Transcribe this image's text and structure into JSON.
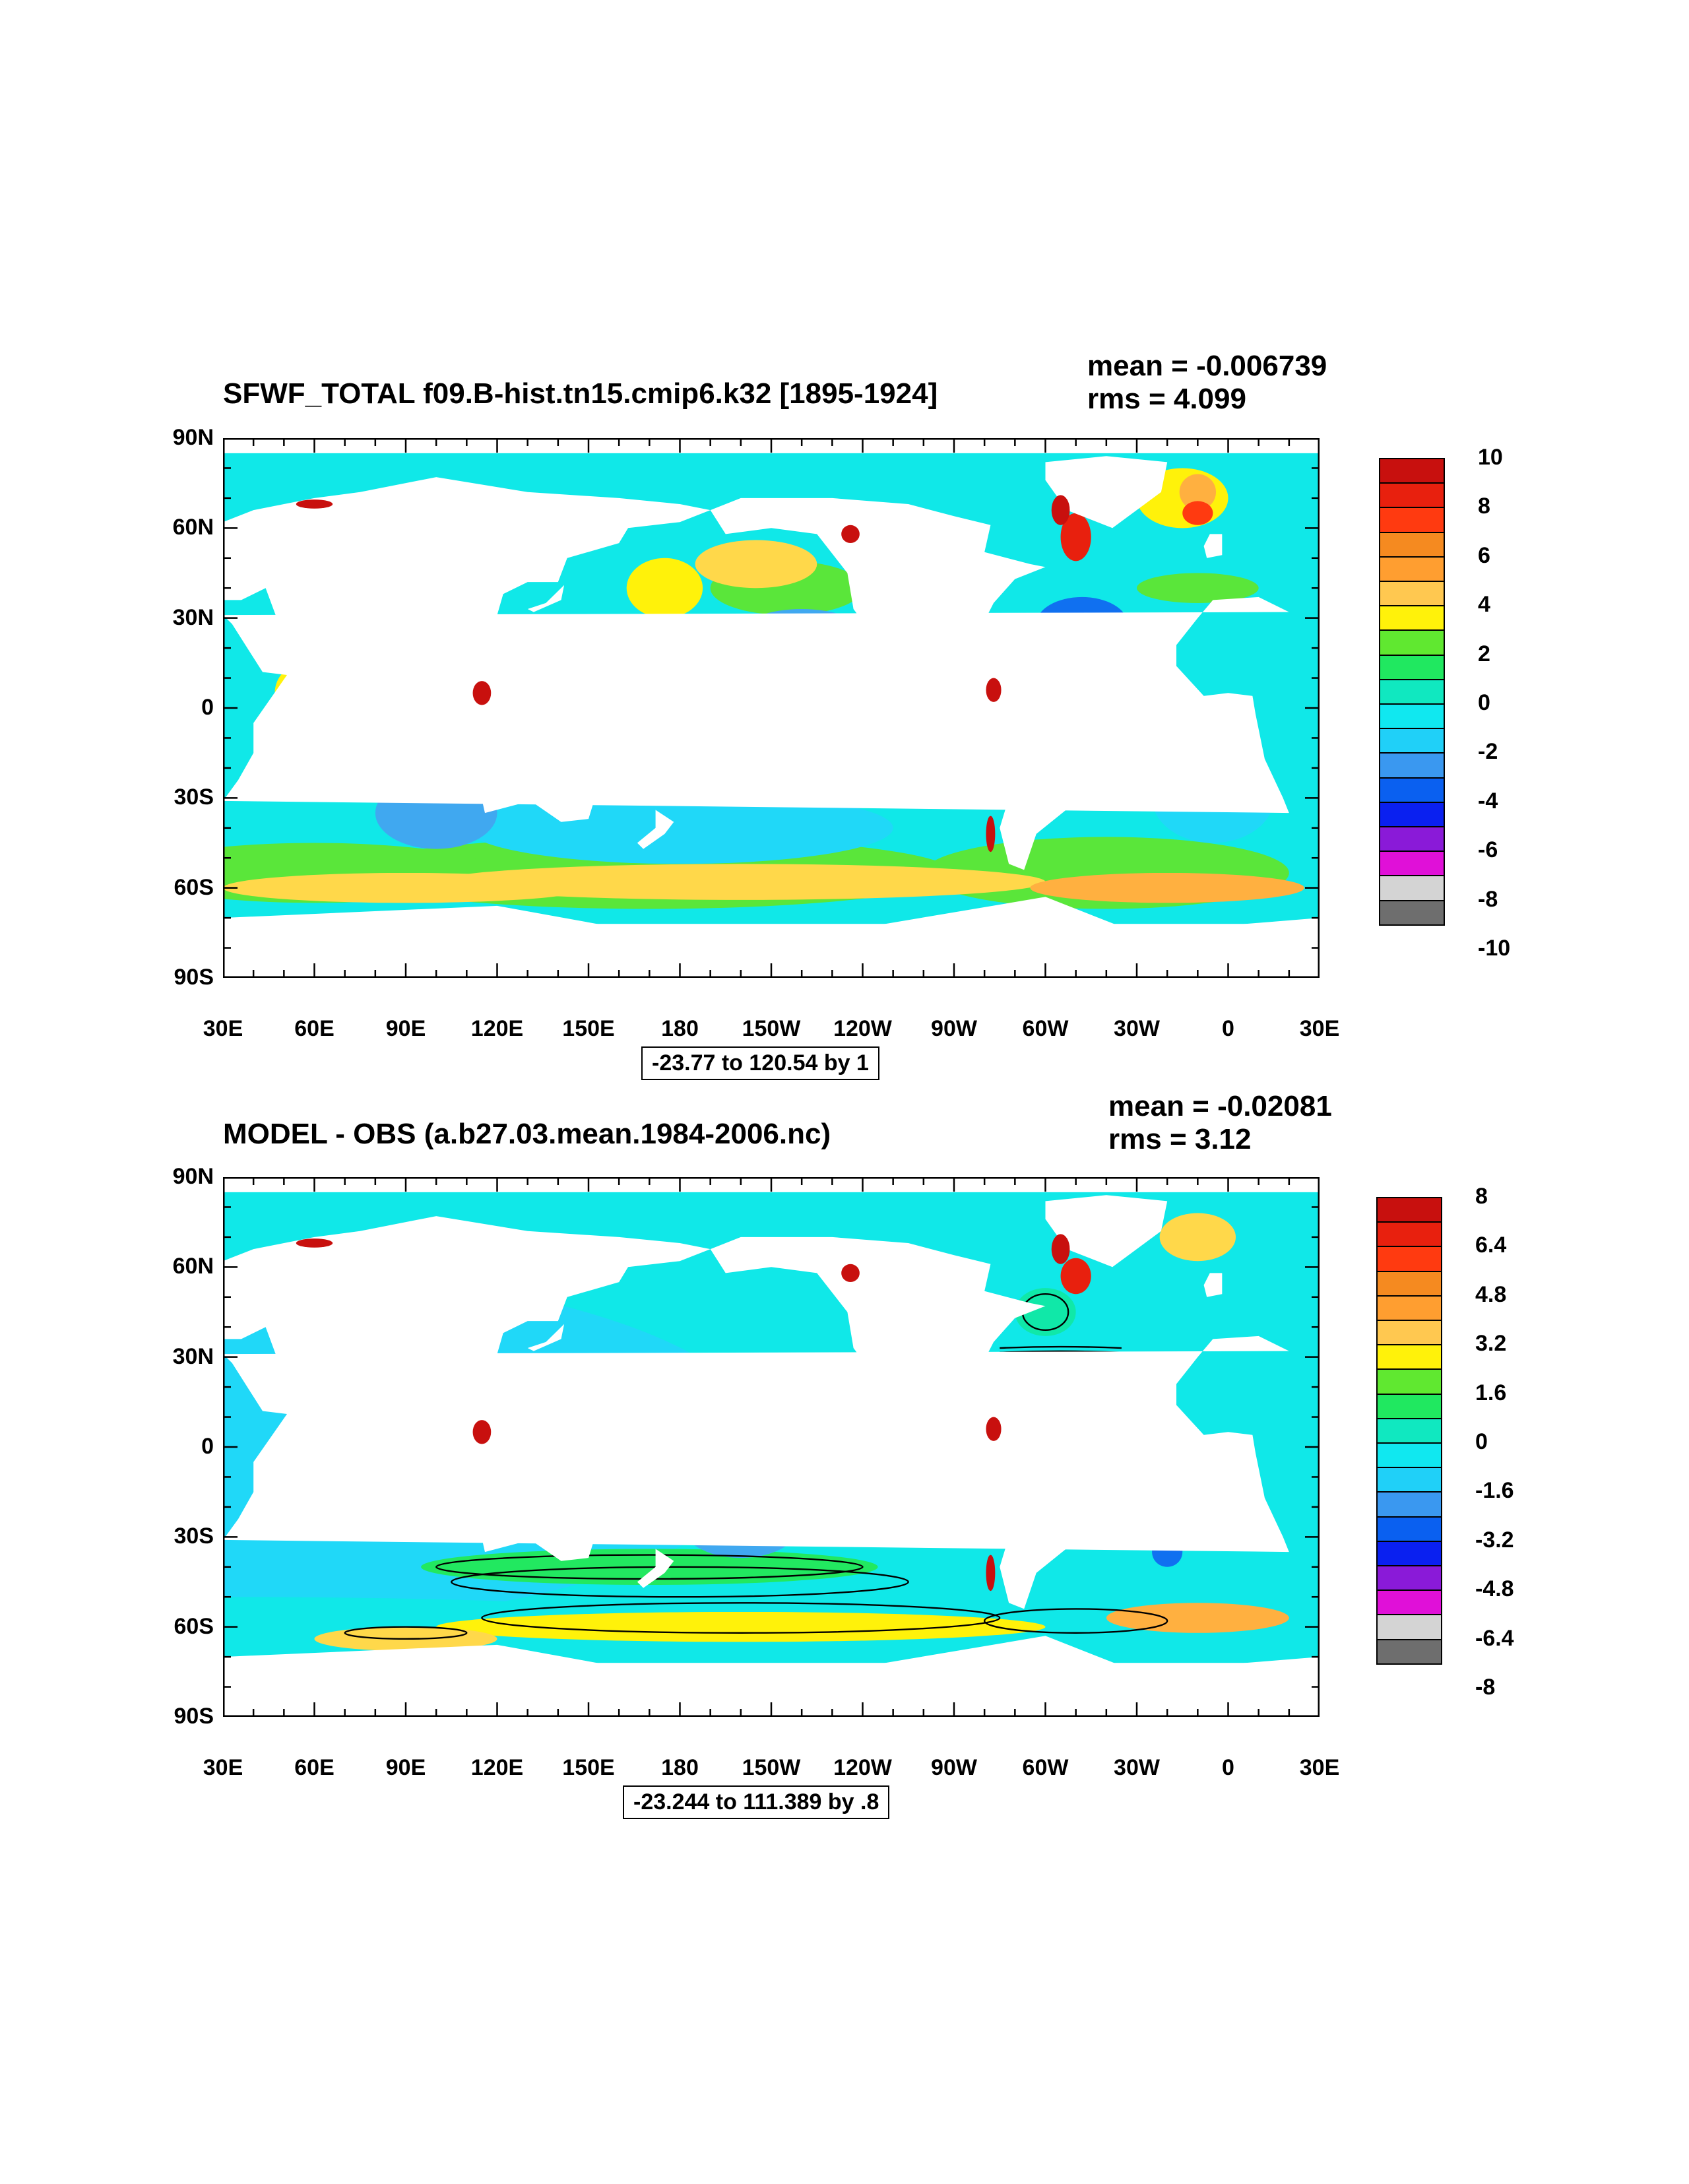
{
  "panels": [
    {
      "title": "SFWF_TOTAL f09.B-hist.tn15.cmip6.k32 [1895-1924]",
      "mean": "mean = -0.006739",
      "rms": "rms = 4.099",
      "range": "-23.77 to 120.54 by 1",
      "y_labels": [
        "90N",
        "60N",
        "30N",
        "0",
        "30S",
        "60S",
        "90S"
      ],
      "x_labels": [
        "30E",
        "60E",
        "90E",
        "120E",
        "150E",
        "180",
        "150W",
        "120W",
        "90W",
        "60W",
        "30W",
        "0",
        "30E"
      ],
      "colorbar_labels": [
        "10",
        "8",
        "6",
        "4",
        "2",
        "0",
        "-2",
        "-4",
        "-6",
        "-8",
        "-10"
      ],
      "contours": false
    },
    {
      "title": "MODEL - OBS (a.b27.03.mean.1984-2006.nc)",
      "mean": "mean = -0.02081",
      "rms": "rms = 3.12",
      "range": "-23.244 to 111.389 by .8",
      "y_labels": [
        "90N",
        "60N",
        "30N",
        "0",
        "30S",
        "60S",
        "90S"
      ],
      "x_labels": [
        "30E",
        "60E",
        "90E",
        "120E",
        "150E",
        "180",
        "150W",
        "120W",
        "90W",
        "60W",
        "30W",
        "0",
        "30E"
      ],
      "colorbar_labels": [
        "8",
        "6.4",
        "4.8",
        "3.2",
        "1.6",
        "0",
        "-1.6",
        "-3.2",
        "-4.8",
        "-6.4",
        "-8"
      ],
      "contours": true
    }
  ],
  "colors": {
    "palette": [
      "#c8100e",
      "#e8200e",
      "#ff3a10",
      "#f58a20",
      "#ffb040",
      "#ffd84a",
      "#fff20a",
      "#5ae63a",
      "#22e860",
      "#10e8a8",
      "#10e8e8",
      "#20d8f8",
      "#40a8f0",
      "#1070f0",
      "#0a20f0",
      "#8a1ad8",
      "#e810d8",
      "#d0d0d0",
      "#707070"
    ],
    "cbar_colors": [
      "#c8100e",
      "#e8200e",
      "#ff3a10",
      "#f58a20",
      "#ff9e30",
      "#ffc850",
      "#fff20a",
      "#60e830",
      "#20e860",
      "#10e8c0",
      "#10e8f0",
      "#20d0f8",
      "#3a98f0",
      "#0a60f0",
      "#0a20f0",
      "#8a1ad8",
      "#e010d8",
      "#d4d4d4",
      "#6e6e6e"
    ]
  }
}
